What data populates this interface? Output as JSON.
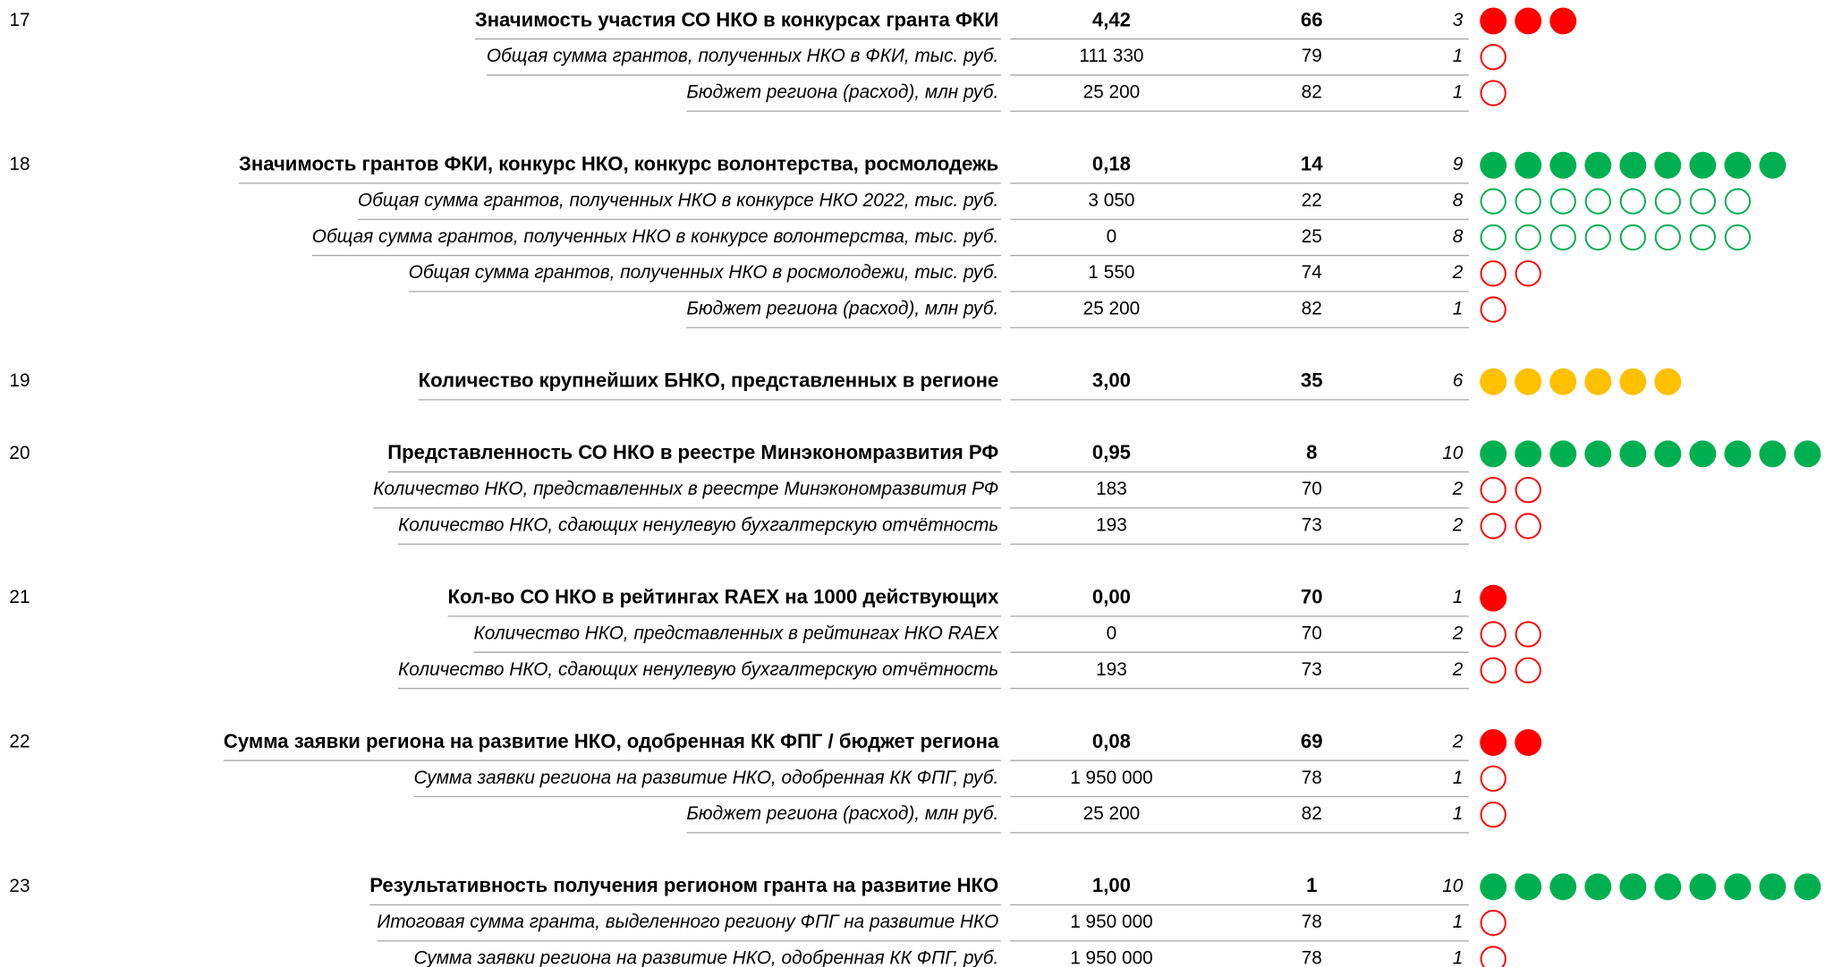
{
  "groups": [
    {
      "number": "17",
      "rows": [
        {
          "label": "Значимость участия СО НКО в конкурсах гранта ФКИ",
          "value": "4,42",
          "rank": 66,
          "score": 3,
          "color": "#ff0000"
        },
        {
          "label": "Общая сумма грантов, полученных НКО в ФКИ, тыс. руб.",
          "value": "111 330",
          "rank": 79,
          "score": 1,
          "color": "#ff0000"
        },
        {
          "label": "Бюджет региона (расход), млн руб.",
          "value": "25 200",
          "rank": 82,
          "score": 1,
          "color": "#ff0000"
        }
      ]
    },
    {
      "number": "18",
      "rows": [
        {
          "label": "Значимость грантов ФКИ, конкурс НКО, конкурс волонтерства, росмолодежь",
          "value": "0,18",
          "rank": 14,
          "score": 9,
          "color": "#00b050"
        },
        {
          "label": "Общая сумма грантов, полученных НКО в конкурсе НКО 2022, тыс. руб.",
          "value": "3 050",
          "rank": 22,
          "score": 8,
          "color": "#00b050"
        },
        {
          "label": "Общая сумма грантов, полученных НКО в конкурсе волонтерства, тыс. руб.",
          "value": "0",
          "rank": 25,
          "score": 8,
          "color": "#00b050"
        },
        {
          "label": "Общая сумма грантов, полученных НКО в росмолодежи, тыс. руб.",
          "value": "1 550",
          "rank": 74,
          "score": 2,
          "color": "#ff0000"
        },
        {
          "label": "Бюджет региона (расход), млн руб.",
          "value": "25 200",
          "rank": 82,
          "score": 1,
          "color": "#ff0000"
        }
      ]
    },
    {
      "number": "19",
      "rows": [
        {
          "label": "Количество крупнейших БНКО, представленных в регионе",
          "value": "3,00",
          "rank": 35,
          "score": 6,
          "color": "#ffc000"
        }
      ]
    },
    {
      "number": "20",
      "rows": [
        {
          "label": "Представленность СО НКО в реестре Минэкономразвития РФ",
          "value": "0,95",
          "rank": 8,
          "score": 10,
          "color": "#00b050"
        },
        {
          "label": "Количество НКО, представленных в реестре Минэкономразвития РФ",
          "value": "183",
          "rank": 70,
          "score": 2,
          "color": "#ff0000"
        },
        {
          "label": "Количество НКО, сдающих ненулевую бухгалтерскую отчётность",
          "value": "193",
          "rank": 73,
          "score": 2,
          "color": "#ff0000"
        }
      ]
    },
    {
      "number": "21",
      "rows": [
        {
          "label": "Кол-во СО НКО в рейтингах RAEX на 1000 действующих",
          "value": "0,00",
          "rank": 70,
          "score": 1,
          "color": "#ff0000"
        },
        {
          "label": "Количество НКО, представленных в рейтингах НКО RAEX",
          "value": "0",
          "rank": 70,
          "score": 2,
          "color": "#ff0000"
        },
        {
          "label": "Количество НКО, сдающих ненулевую бухгалтерскую отчётность",
          "value": "193",
          "rank": 73,
          "score": 2,
          "color": "#ff0000"
        }
      ]
    },
    {
      "number": "22",
      "rows": [
        {
          "label": "Сумма заявки региона на развитие НКО, одобренная КК ФПГ / бюджет региона",
          "value": "0,08",
          "rank": 69,
          "score": 2,
          "color": "#ff0000"
        },
        {
          "label": "Сумма заявки региона на развитие НКО, одобренная КК ФПГ, руб.",
          "value": "1 950 000",
          "rank": 78,
          "score": 1,
          "color": "#ff0000"
        },
        {
          "label": "Бюджет региона (расход), млн руб.",
          "value": "25 200",
          "rank": 82,
          "score": 1,
          "color": "#ff0000"
        }
      ]
    },
    {
      "number": "23",
      "rows": [
        {
          "label": "Результативность получения регионом гранта на развитие НКО",
          "value": "1,00",
          "rank": 1,
          "score": 10,
          "color": "#00b050"
        },
        {
          "label": "Итоговая сумма гранта, выделенного региону ФПГ на развитие НКО",
          "value": "1 950 000",
          "rank": 78,
          "score": 1,
          "color": "#ff0000"
        },
        {
          "label": "Сумма заявки региона на развитие НКО, одобренная КК ФПГ, руб.",
          "value": "1 950 000",
          "rank": 78,
          "score": 1,
          "color": "#ff0000"
        }
      ]
    }
  ]
}
